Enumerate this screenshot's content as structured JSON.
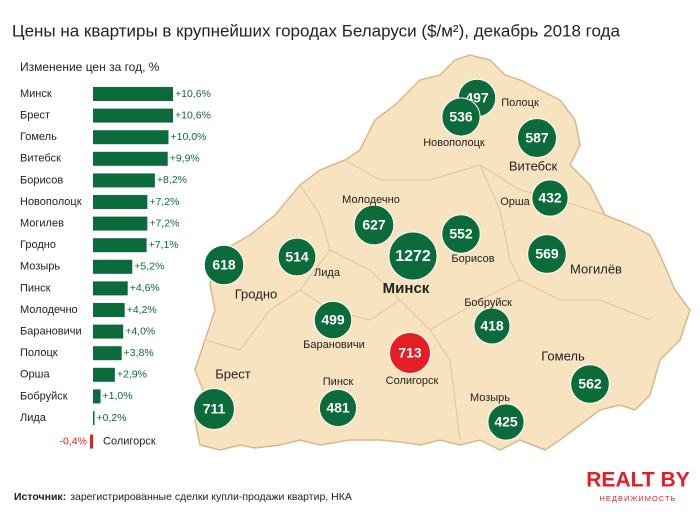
{
  "title": "Цены на квартиры в крупнейших городах Беларуси ($/м²), декабрь 2018 года",
  "chart_data": [
    {
      "type": "bar",
      "orientation": "horizontal",
      "title": "Изменение цен за год, %",
      "categories": [
        "Минск",
        "Брест",
        "Гомель",
        "Витебск",
        "Борисов",
        "Новополоцк",
        "Могилев",
        "Гродно",
        "Мозырь",
        "Пинск",
        "Молодечно",
        "Барановичи",
        "Полоцк",
        "Орша",
        "Бобруйск",
        "Лида",
        "Солигорск"
      ],
      "values": [
        10.6,
        10.6,
        10.0,
        9.9,
        8.2,
        7.2,
        7.2,
        7.1,
        5.2,
        4.6,
        4.2,
        4.0,
        3.8,
        2.9,
        1.0,
        0.2,
        -0.4
      ],
      "value_labels": [
        "+10,6%",
        "+10,6%",
        "+10,0%",
        "+9,9%",
        "+8,2%",
        "+7,2%",
        "+7,2%",
        "+7,1%",
        "+5,2%",
        "+4,6%",
        "+4,2%",
        "+4,0%",
        "+3,8%",
        "+2,9%",
        "+1,0%",
        "+0,2%",
        "-0,4%"
      ],
      "color": "#0b6b3a",
      "negative_color": "#e31e24"
    },
    {
      "type": "bubble-map",
      "points": [
        {
          "name": "Полоцк",
          "value": 497,
          "color": "#0b6b3a"
        },
        {
          "name": "Новополоцк",
          "value": 536,
          "color": "#0b6b3a"
        },
        {
          "name": "Витебск",
          "value": 587,
          "color": "#0b6b3a"
        },
        {
          "name": "Орша",
          "value": 432,
          "color": "#0b6b3a"
        },
        {
          "name": "Молодечно",
          "value": 627,
          "color": "#0b6b3a"
        },
        {
          "name": "Борисов",
          "value": 552,
          "color": "#0b6b3a"
        },
        {
          "name": "Минск",
          "value": 1272,
          "color": "#0b6b3a"
        },
        {
          "name": "Могилёв",
          "value": 569,
          "color": "#0b6b3a"
        },
        {
          "name": "Гродно",
          "value": 618,
          "color": "#0b6b3a"
        },
        {
          "name": "Лида",
          "value": 514,
          "color": "#0b6b3a"
        },
        {
          "name": "Барановичи",
          "value": 499,
          "color": "#0b6b3a"
        },
        {
          "name": "Бобруйск",
          "value": 418,
          "color": "#0b6b3a"
        },
        {
          "name": "Солигорск",
          "value": 713,
          "color": "#e31e24"
        },
        {
          "name": "Гомель",
          "value": 562,
          "color": "#0b6b3a"
        },
        {
          "name": "Брест",
          "value": 711,
          "color": "#0b6b3a"
        },
        {
          "name": "Пинск",
          "value": 481,
          "color": "#0b6b3a"
        },
        {
          "name": "Мозырь",
          "value": 425,
          "color": "#0b6b3a"
        }
      ]
    }
  ],
  "source": {
    "label": "Источник:",
    "text": "зарегистрированные сделки купли-продажи квартир, НКА"
  },
  "logo": {
    "title": "REALT BY",
    "subtitle": "НЕДВИЖИМОСТЬ"
  }
}
